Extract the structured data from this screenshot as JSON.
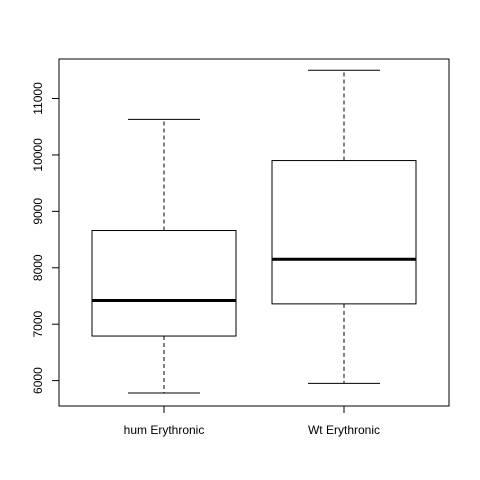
{
  "chart_data": {
    "type": "boxplot",
    "title": "",
    "xlabel": "",
    "ylabel": "",
    "ylim": [
      5550,
      11700
    ],
    "yticks": [
      6000,
      7000,
      8000,
      9000,
      10000,
      11000
    ],
    "categories": [
      "hum Erythronic",
      "Wt Erythronic"
    ],
    "boxes": [
      {
        "name": "hum Erythronic",
        "whisker_low": 5780,
        "q1": 6790,
        "median": 7420,
        "q3": 8660,
        "whisker_high": 10630
      },
      {
        "name": "Wt Erythronic",
        "whisker_low": 5950,
        "q1": 7360,
        "median": 8150,
        "q3": 9900,
        "whisker_high": 11500
      }
    ]
  }
}
